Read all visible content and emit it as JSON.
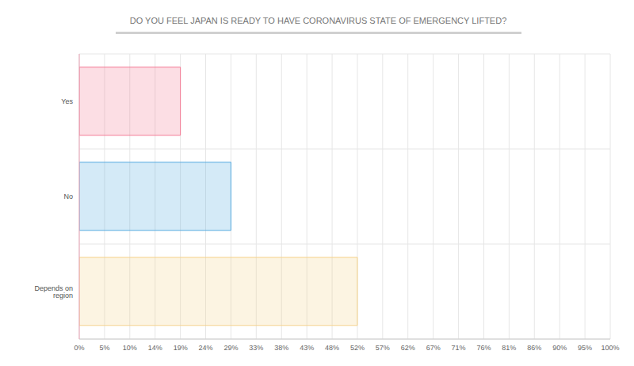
{
  "chart_data": {
    "type": "bar",
    "title": "DO YOU FEEL JAPAN IS READY TO HAVE CORONAVIRUS STATE OF EMERGENCY LIFTED?",
    "orientation": "horizontal",
    "categories": [
      "Yes",
      "No",
      "Depends on region"
    ],
    "values": [
      19.05,
      28.57,
      52.38
    ],
    "colors": [
      "#f47a94",
      "#55aae0",
      "#f5d28a"
    ],
    "xlim": [
      0,
      100
    ],
    "xticks": [
      {
        "value": 0,
        "label": "0%"
      },
      {
        "value": 4.76,
        "label": "5%"
      },
      {
        "value": 9.52,
        "label": "10%"
      },
      {
        "value": 14.29,
        "label": "14%"
      },
      {
        "value": 19.05,
        "label": "19%"
      },
      {
        "value": 23.81,
        "label": "24%"
      },
      {
        "value": 28.57,
        "label": "29%"
      },
      {
        "value": 33.33,
        "label": "33%"
      },
      {
        "value": 38.1,
        "label": "38%"
      },
      {
        "value": 42.86,
        "label": "43%"
      },
      {
        "value": 47.62,
        "label": "48%"
      },
      {
        "value": 52.38,
        "label": "52%"
      },
      {
        "value": 57.14,
        "label": "57%"
      },
      {
        "value": 61.9,
        "label": "62%"
      },
      {
        "value": 66.67,
        "label": "67%"
      },
      {
        "value": 71.43,
        "label": "71%"
      },
      {
        "value": 76.19,
        "label": "76%"
      },
      {
        "value": 80.95,
        "label": "81%"
      },
      {
        "value": 85.71,
        "label": "86%"
      },
      {
        "value": 90.48,
        "label": "90%"
      },
      {
        "value": 95.24,
        "label": "95%"
      },
      {
        "value": 100,
        "label": "100%"
      }
    ],
    "grid": true
  }
}
